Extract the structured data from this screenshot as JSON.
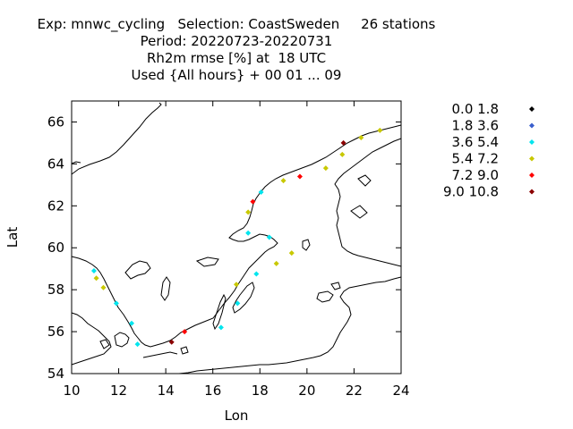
{
  "title_lines": [
    "Exp: mnwc_cycling   Selection: CoastSweden     26 stations",
    "Period: 20220723-20220731",
    "Rh2m rmse [%] at  18 UTC",
    "Used {All hours} + 00 01 ... 09"
  ],
  "chart_data": {
    "type": "scatter",
    "xlabel": "Lon",
    "ylabel": "Lat",
    "xlim": [
      10,
      24
    ],
    "ylim": [
      54,
      67
    ],
    "xticks": [
      10,
      12,
      14,
      16,
      18,
      20,
      22,
      24
    ],
    "yticks": [
      54,
      56,
      58,
      60,
      62,
      64,
      66
    ],
    "xtick_labels": [
      "10",
      "12",
      "14",
      "16",
      "18",
      "20",
      "22",
      "24"
    ],
    "ytick_labels": [
      "54",
      "56",
      "58",
      "60",
      "62",
      "64",
      "66"
    ],
    "grid": false,
    "legend_position": "right",
    "classes": [
      {
        "label": "0.0 1.8",
        "color": "#000000"
      },
      {
        "label": "1.8 3.6",
        "color": "#3a5fcd"
      },
      {
        "label": "3.6 5.4",
        "color": "#00e5ee"
      },
      {
        "label": "5.4 7.2",
        "color": "#c8c800"
      },
      {
        "label": "7.2 9.0",
        "color": "#ff0000"
      },
      {
        "label": "9.0 10.8",
        "color": "#8b0000"
      }
    ],
    "points": [
      {
        "lon": 23.1,
        "lat": 65.6,
        "c": 3
      },
      {
        "lon": 22.3,
        "lat": 65.25,
        "c": 3
      },
      {
        "lon": 21.55,
        "lat": 65.0,
        "c": 5
      },
      {
        "lon": 21.5,
        "lat": 64.45,
        "c": 3
      },
      {
        "lon": 20.8,
        "lat": 63.8,
        "c": 3
      },
      {
        "lon": 19.7,
        "lat": 63.4,
        "c": 4
      },
      {
        "lon": 19.0,
        "lat": 63.2,
        "c": 3
      },
      {
        "lon": 18.05,
        "lat": 62.65,
        "c": 2
      },
      {
        "lon": 17.7,
        "lat": 62.2,
        "c": 4
      },
      {
        "lon": 17.5,
        "lat": 61.7,
        "c": 3
      },
      {
        "lon": 17.5,
        "lat": 60.7,
        "c": 2
      },
      {
        "lon": 18.4,
        "lat": 60.5,
        "c": 2
      },
      {
        "lon": 19.35,
        "lat": 59.75,
        "c": 3
      },
      {
        "lon": 18.7,
        "lat": 59.25,
        "c": 3
      },
      {
        "lon": 17.85,
        "lat": 58.75,
        "c": 2
      },
      {
        "lon": 17.0,
        "lat": 58.25,
        "c": 3
      },
      {
        "lon": 17.05,
        "lat": 57.35,
        "c": 2
      },
      {
        "lon": 16.35,
        "lat": 56.2,
        "c": 2
      },
      {
        "lon": 14.8,
        "lat": 56.0,
        "c": 4
      },
      {
        "lon": 14.25,
        "lat": 55.5,
        "c": 5
      },
      {
        "lon": 12.8,
        "lat": 55.4,
        "c": 2
      },
      {
        "lon": 12.55,
        "lat": 56.4,
        "c": 2
      },
      {
        "lon": 11.9,
        "lat": 57.35,
        "c": 2
      },
      {
        "lon": 11.35,
        "lat": 58.1,
        "c": 3
      },
      {
        "lon": 11.05,
        "lat": 58.55,
        "c": 3
      },
      {
        "lon": 10.95,
        "lat": 58.9,
        "c": 2
      }
    ]
  }
}
